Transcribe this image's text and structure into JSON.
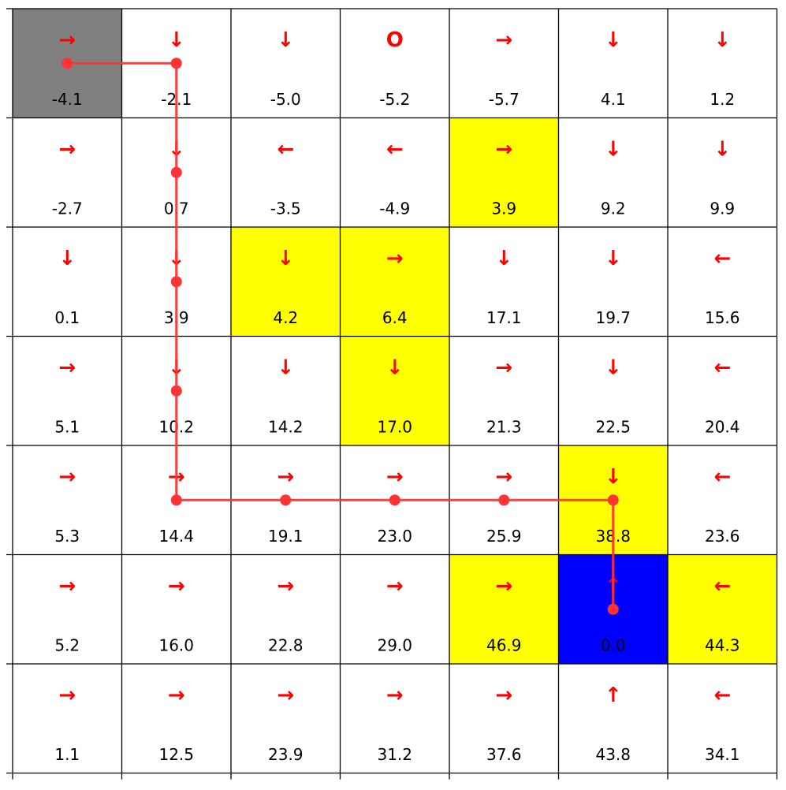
{
  "grid": {
    "rows": [
      [
        {
          "action": "→",
          "value": "-4.1",
          "fill": "gray"
        },
        {
          "action": "↓",
          "value": "-2.1",
          "fill": "white"
        },
        {
          "action": "↓",
          "value": "-5.0",
          "fill": "white"
        },
        {
          "action": "O",
          "value": "-5.2",
          "fill": "white"
        },
        {
          "action": "→",
          "value": "-5.7",
          "fill": "white"
        },
        {
          "action": "↓",
          "value": "4.1",
          "fill": "white"
        },
        {
          "action": "↓",
          "value": "1.2",
          "fill": "white"
        }
      ],
      [
        {
          "action": "→",
          "value": "-2.7",
          "fill": "white"
        },
        {
          "action": "↓",
          "value": "0.7",
          "fill": "white"
        },
        {
          "action": "←",
          "value": "-3.5",
          "fill": "white"
        },
        {
          "action": "←",
          "value": "-4.9",
          "fill": "white"
        },
        {
          "action": "→",
          "value": "3.9",
          "fill": "yellow"
        },
        {
          "action": "↓",
          "value": "9.2",
          "fill": "white"
        },
        {
          "action": "↓",
          "value": "9.9",
          "fill": "white"
        }
      ],
      [
        {
          "action": "↓",
          "value": "0.1",
          "fill": "white"
        },
        {
          "action": "↓",
          "value": "3.9",
          "fill": "white"
        },
        {
          "action": "↓",
          "value": "4.2",
          "fill": "yellow"
        },
        {
          "action": "→",
          "value": "6.4",
          "fill": "yellow"
        },
        {
          "action": "↓",
          "value": "17.1",
          "fill": "white"
        },
        {
          "action": "↓",
          "value": "19.7",
          "fill": "white"
        },
        {
          "action": "←",
          "value": "15.6",
          "fill": "white"
        }
      ],
      [
        {
          "action": "→",
          "value": "5.1",
          "fill": "white"
        },
        {
          "action": "↓",
          "value": "10.2",
          "fill": "white"
        },
        {
          "action": "↓",
          "value": "14.2",
          "fill": "white"
        },
        {
          "action": "↓",
          "value": "17.0",
          "fill": "yellow"
        },
        {
          "action": "→",
          "value": "21.3",
          "fill": "white"
        },
        {
          "action": "↓",
          "value": "22.5",
          "fill": "white"
        },
        {
          "action": "←",
          "value": "20.4",
          "fill": "white"
        }
      ],
      [
        {
          "action": "→",
          "value": "5.3",
          "fill": "white"
        },
        {
          "action": "→",
          "value": "14.4",
          "fill": "white"
        },
        {
          "action": "→",
          "value": "19.1",
          "fill": "white"
        },
        {
          "action": "→",
          "value": "23.0",
          "fill": "white"
        },
        {
          "action": "→",
          "value": "25.9",
          "fill": "white"
        },
        {
          "action": "↓",
          "value": "38.8",
          "fill": "yellow"
        },
        {
          "action": "←",
          "value": "23.6",
          "fill": "white"
        }
      ],
      [
        {
          "action": "→",
          "value": "5.2",
          "fill": "white"
        },
        {
          "action": "→",
          "value": "16.0",
          "fill": "white"
        },
        {
          "action": "→",
          "value": "22.8",
          "fill": "white"
        },
        {
          "action": "→",
          "value": "29.0",
          "fill": "white"
        },
        {
          "action": "→",
          "value": "46.9",
          "fill": "yellow"
        },
        {
          "action": "↑",
          "value": "0.0",
          "fill": "blue"
        },
        {
          "action": "←",
          "value": "44.3",
          "fill": "yellow"
        }
      ],
      [
        {
          "action": "→",
          "value": "1.1",
          "fill": "white"
        },
        {
          "action": "→",
          "value": "12.5",
          "fill": "white"
        },
        {
          "action": "→",
          "value": "23.9",
          "fill": "white"
        },
        {
          "action": "→",
          "value": "31.2",
          "fill": "white"
        },
        {
          "action": "→",
          "value": "37.6",
          "fill": "white"
        },
        {
          "action": "↑",
          "value": "43.8",
          "fill": "white"
        },
        {
          "action": "←",
          "value": "34.1",
          "fill": "white"
        }
      ]
    ]
  },
  "path": [
    [
      0,
      0
    ],
    [
      0,
      1
    ],
    [
      1,
      1
    ],
    [
      2,
      1
    ],
    [
      3,
      1
    ],
    [
      4,
      1
    ],
    [
      4,
      2
    ],
    [
      4,
      3
    ],
    [
      4,
      4
    ],
    [
      4,
      5
    ],
    [
      5,
      5
    ]
  ],
  "colors": {
    "gray": "#808080",
    "white": "#ffffff",
    "yellow": "#ffff00",
    "blue": "#0000ff",
    "arrow": "#ff0000",
    "path": "#ff3333",
    "line": "#000000"
  }
}
